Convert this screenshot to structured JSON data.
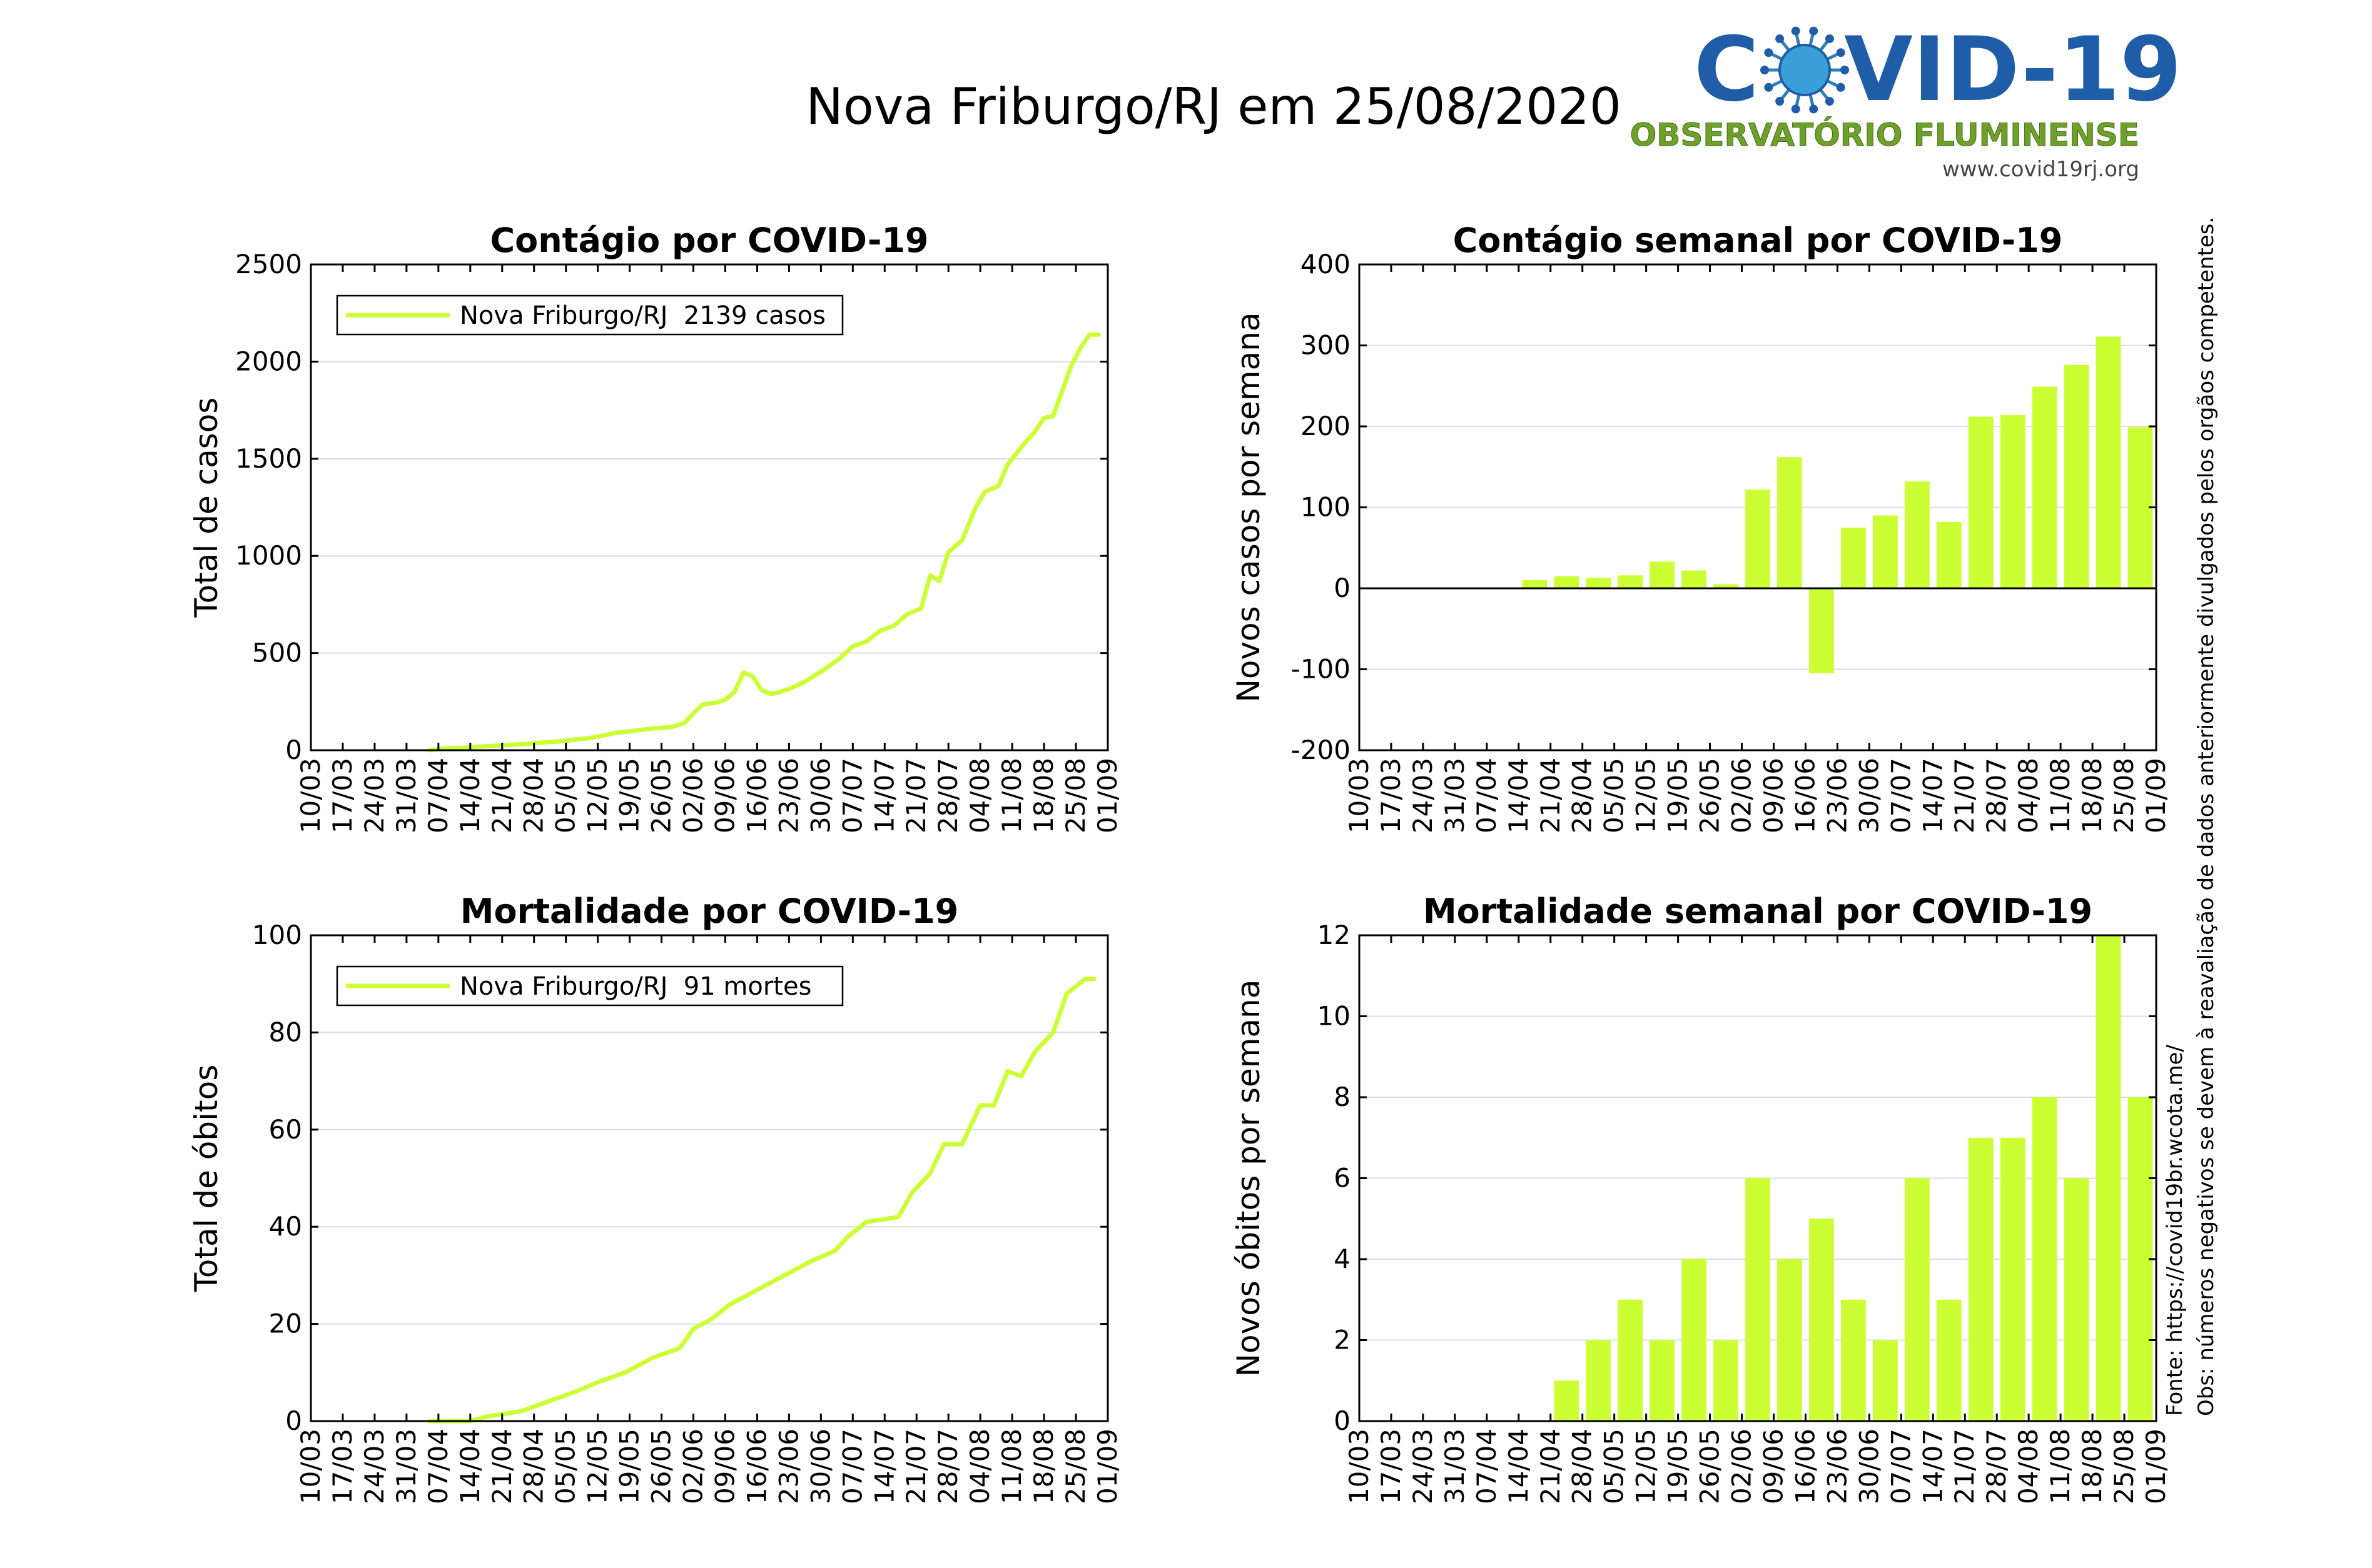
{
  "page": {
    "title": "Nova Friburgo/RJ em 25/08/2020"
  },
  "logo": {
    "title_left": "C",
    "title_right": "VID-19",
    "subtitle": "OBSERVATÓRIO FLUMINENSE",
    "url": "www.covid19rj.org",
    "colors": {
      "blue": "#1f5da8",
      "green": "#6fa02a",
      "virus": "#3a9fd6"
    }
  },
  "side_notes": {
    "source": "Fonte: https://covid19br.wcota.me/",
    "note": "Obs: números negativos se devem à reavaliação de dados anteriormente divulgados pelos orgãos competentes."
  },
  "colors": {
    "series": "#ccff33",
    "axis": "#000000",
    "grid": "#dcdcdc"
  },
  "chart_data": [
    {
      "id": "cases_total",
      "type": "line",
      "title": "Contágio por COVID-19",
      "xlabel": "",
      "ylabel": "Total de casos",
      "ylim": [
        0,
        2500
      ],
      "yticks": [
        0,
        500,
        1000,
        1500,
        2000,
        2500
      ],
      "xlim": [
        "2020-03-10",
        "2020-09-01"
      ],
      "xticks": [
        "10/03",
        "17/03",
        "24/03",
        "31/03",
        "07/04",
        "14/04",
        "21/04",
        "28/04",
        "05/05",
        "12/05",
        "19/05",
        "26/05",
        "02/06",
        "09/06",
        "16/06",
        "23/06",
        "30/06",
        "07/07",
        "14/07",
        "21/07",
        "28/07",
        "04/08",
        "11/08",
        "18/08",
        "25/08",
        "01/09"
      ],
      "grid": "y",
      "legend": {
        "position": "top-left",
        "label": "Nova Friburgo/RJ  2139 casos"
      },
      "series": [
        {
          "name": "Nova Friburgo/RJ  2139 casos",
          "points": [
            [
              "2020-04-05",
              0
            ],
            [
              "2020-04-08",
              8
            ],
            [
              "2020-04-12",
              12
            ],
            [
              "2020-04-15",
              18
            ],
            [
              "2020-04-19",
              22
            ],
            [
              "2020-04-22",
              26
            ],
            [
              "2020-04-26",
              32
            ],
            [
              "2020-04-30",
              40
            ],
            [
              "2020-05-04",
              46
            ],
            [
              "2020-05-07",
              55
            ],
            [
              "2020-05-10",
              62
            ],
            [
              "2020-05-13",
              75
            ],
            [
              "2020-05-16",
              90
            ],
            [
              "2020-05-20",
              100
            ],
            [
              "2020-05-24",
              112
            ],
            [
              "2020-05-28",
              118
            ],
            [
              "2020-05-31",
              140
            ],
            [
              "2020-06-02",
              190
            ],
            [
              "2020-06-04",
              235
            ],
            [
              "2020-06-07",
              245
            ],
            [
              "2020-06-09",
              260
            ],
            [
              "2020-06-11",
              300
            ],
            [
              "2020-06-13",
              400
            ],
            [
              "2020-06-15",
              380
            ],
            [
              "2020-06-17",
              310
            ],
            [
              "2020-06-19",
              290
            ],
            [
              "2020-06-21",
              300
            ],
            [
              "2020-06-24",
              325
            ],
            [
              "2020-06-27",
              360
            ],
            [
              "2020-07-01",
              420
            ],
            [
              "2020-07-04",
              470
            ],
            [
              "2020-07-07",
              535
            ],
            [
              "2020-07-10",
              560
            ],
            [
              "2020-07-13",
              615
            ],
            [
              "2020-07-16",
              640
            ],
            [
              "2020-07-19",
              700
            ],
            [
              "2020-07-22",
              730
            ],
            [
              "2020-07-24",
              900
            ],
            [
              "2020-07-26",
              870
            ],
            [
              "2020-07-28",
              1020
            ],
            [
              "2020-07-31",
              1080
            ],
            [
              "2020-08-03",
              1250
            ],
            [
              "2020-08-05",
              1330
            ],
            [
              "2020-08-08",
              1360
            ],
            [
              "2020-08-10",
              1470
            ],
            [
              "2020-08-13",
              1560
            ],
            [
              "2020-08-16",
              1640
            ],
            [
              "2020-08-18",
              1710
            ],
            [
              "2020-08-20",
              1720
            ],
            [
              "2020-08-22",
              1850
            ],
            [
              "2020-08-24",
              1980
            ],
            [
              "2020-08-26",
              2070
            ],
            [
              "2020-08-28",
              2139
            ],
            [
              "2020-08-30",
              2139
            ]
          ]
        }
      ]
    },
    {
      "id": "cases_weekly",
      "type": "bar",
      "title": "Contágio semanal por COVID-19",
      "xlabel": "",
      "ylabel": "Novos casos por semana",
      "ylim": [
        -200,
        400
      ],
      "yticks": [
        -200,
        -100,
        0,
        100,
        200,
        300,
        400
      ],
      "categories": [
        "10/03",
        "17/03",
        "24/03",
        "31/03",
        "07/04",
        "14/04",
        "21/04",
        "28/04",
        "05/05",
        "12/05",
        "19/05",
        "26/05",
        "02/06",
        "09/06",
        "16/06",
        "23/06",
        "30/06",
        "07/07",
        "14/07",
        "21/07",
        "28/07",
        "04/08",
        "11/08",
        "18/08",
        "25/08",
        "01/09"
      ],
      "grid": "y",
      "series": [
        {
          "values": [
            0,
            0,
            0,
            0,
            0,
            10,
            15,
            13,
            16,
            33,
            22,
            5,
            122,
            162,
            -105,
            75,
            90,
            132,
            82,
            212,
            214,
            249,
            276,
            311,
            199,
            null
          ]
        }
      ]
    },
    {
      "id": "deaths_total",
      "type": "line",
      "title": "Mortalidade por COVID-19",
      "xlabel": "",
      "ylabel": "Total de óbitos",
      "ylim": [
        0,
        100
      ],
      "yticks": [
        0,
        20,
        40,
        60,
        80,
        100
      ],
      "xlim": [
        "2020-03-10",
        "2020-09-01"
      ],
      "xticks": [
        "10/03",
        "17/03",
        "24/03",
        "31/03",
        "07/04",
        "14/04",
        "21/04",
        "28/04",
        "05/05",
        "12/05",
        "19/05",
        "26/05",
        "02/06",
        "09/06",
        "16/06",
        "23/06",
        "30/06",
        "07/07",
        "14/07",
        "21/07",
        "28/07",
        "04/08",
        "11/08",
        "18/08",
        "25/08",
        "01/09"
      ],
      "grid": "y",
      "legend": {
        "position": "top-left",
        "label": "Nova Friburgo/RJ  91 mortes"
      },
      "series": [
        {
          "name": "Nova Friburgo/RJ  91 mortes",
          "points": [
            [
              "2020-04-05",
              0
            ],
            [
              "2020-04-14",
              0
            ],
            [
              "2020-04-18",
              1
            ],
            [
              "2020-04-25",
              2
            ],
            [
              "2020-05-01",
              4
            ],
            [
              "2020-05-07",
              6
            ],
            [
              "2020-05-12",
              8
            ],
            [
              "2020-05-18",
              10
            ],
            [
              "2020-05-24",
              13
            ],
            [
              "2020-05-30",
              15
            ],
            [
              "2020-06-02",
              19
            ],
            [
              "2020-06-06",
              21
            ],
            [
              "2020-06-10",
              24
            ],
            [
              "2020-06-16",
              27
            ],
            [
              "2020-06-22",
              30
            ],
            [
              "2020-06-28",
              33
            ],
            [
              "2020-07-03",
              35
            ],
            [
              "2020-07-06",
              38
            ],
            [
              "2020-07-10",
              41
            ],
            [
              "2020-07-17",
              42
            ],
            [
              "2020-07-20",
              47
            ],
            [
              "2020-07-24",
              51
            ],
            [
              "2020-07-27",
              57
            ],
            [
              "2020-07-31",
              57
            ],
            [
              "2020-08-04",
              65
            ],
            [
              "2020-08-07",
              65
            ],
            [
              "2020-08-10",
              72
            ],
            [
              "2020-08-13",
              71
            ],
            [
              "2020-08-16",
              76
            ],
            [
              "2020-08-20",
              80
            ],
            [
              "2020-08-23",
              88
            ],
            [
              "2020-08-27",
              91
            ],
            [
              "2020-08-29",
              91
            ]
          ]
        }
      ]
    },
    {
      "id": "deaths_weekly",
      "type": "bar",
      "title": "Mortalidade semanal por COVID-19",
      "xlabel": "",
      "ylabel": "Novos óbitos por semana",
      "ylim": [
        0,
        12
      ],
      "yticks": [
        0,
        2,
        4,
        6,
        8,
        10,
        12
      ],
      "categories": [
        "10/03",
        "17/03",
        "24/03",
        "31/03",
        "07/04",
        "14/04",
        "21/04",
        "28/04",
        "05/05",
        "12/05",
        "19/05",
        "26/05",
        "02/06",
        "09/06",
        "16/06",
        "23/06",
        "30/06",
        "07/07",
        "14/07",
        "21/07",
        "28/07",
        "04/08",
        "11/08",
        "18/08",
        "25/08",
        "01/09"
      ],
      "grid": "y",
      "series": [
        {
          "values": [
            0,
            0,
            0,
            0,
            0,
            0,
            1,
            2,
            3,
            2,
            4,
            2,
            6,
            4,
            5,
            3,
            2,
            6,
            3,
            7,
            7,
            8,
            6,
            12,
            8,
            null
          ]
        }
      ]
    }
  ]
}
